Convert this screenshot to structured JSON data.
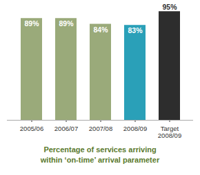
{
  "chart_data": {
    "type": "bar",
    "title": "Percentage of services arriving\nwithin ‘on-time’ arrival parameter",
    "categories": [
      "2005/06",
      "2006/07",
      "2007/08",
      "2008/09",
      "Target\n2008/09"
    ],
    "values": [
      89,
      89,
      84,
      83,
      95
    ],
    "value_labels": [
      "89%",
      "89%",
      "84%",
      "83%",
      "95%"
    ],
    "colors": [
      "#9aaa7a",
      "#9aaa7a",
      "#9aaa7a",
      "#2aa0b8",
      "#2d2d2d"
    ],
    "ylim": [
      0,
      100
    ],
    "grid": false,
    "data_labels": true,
    "tick_labels": "x"
  }
}
